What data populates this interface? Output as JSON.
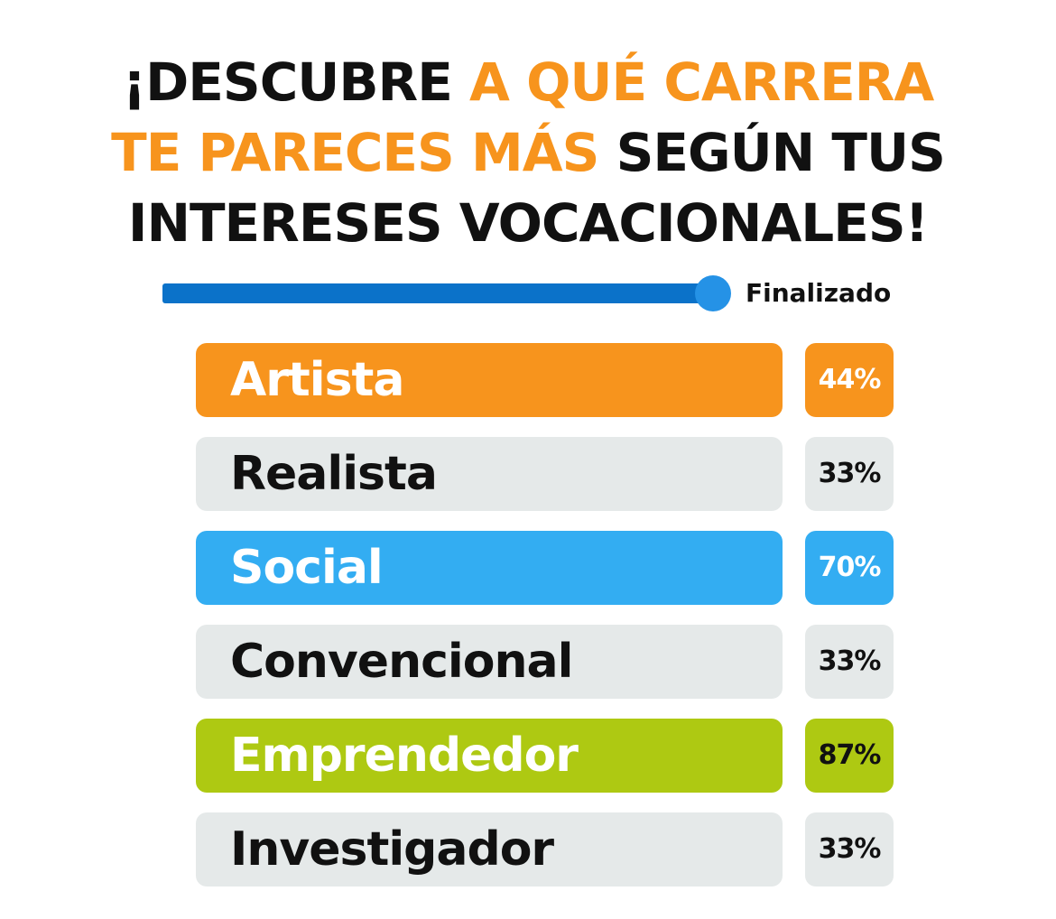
{
  "title": {
    "part1": "¡DESCUBRE ",
    "part2": "A QUÉ CARRERA TE PARECES MÁS",
    "part3": " SEGÚN TUS INTERESES VOCACIONALES!"
  },
  "progress": {
    "label": "Finalizado",
    "value": 1.0
  },
  "results": [
    {
      "label": "Artista",
      "percent": "44%",
      "color": "#f7941d",
      "highlight": true
    },
    {
      "label": "Realista",
      "percent": "33%",
      "color": "#e5e9e9",
      "highlight": false
    },
    {
      "label": "Social",
      "percent": "70%",
      "color": "#33adf2",
      "highlight": true
    },
    {
      "label": "Convencional",
      "percent": "33%",
      "color": "#e5e9e9",
      "highlight": false
    },
    {
      "label": "Emprendedor",
      "percent": "87%",
      "color": "#aec912",
      "highlight": true,
      "pct_text_color": "#111111"
    },
    {
      "label": "Investigador",
      "percent": "33%",
      "color": "#e5e9e9",
      "highlight": false
    }
  ],
  "colors": {
    "accent": "#f7941d",
    "progress": "#0b72c9",
    "neutral": "#e5e9e9"
  }
}
